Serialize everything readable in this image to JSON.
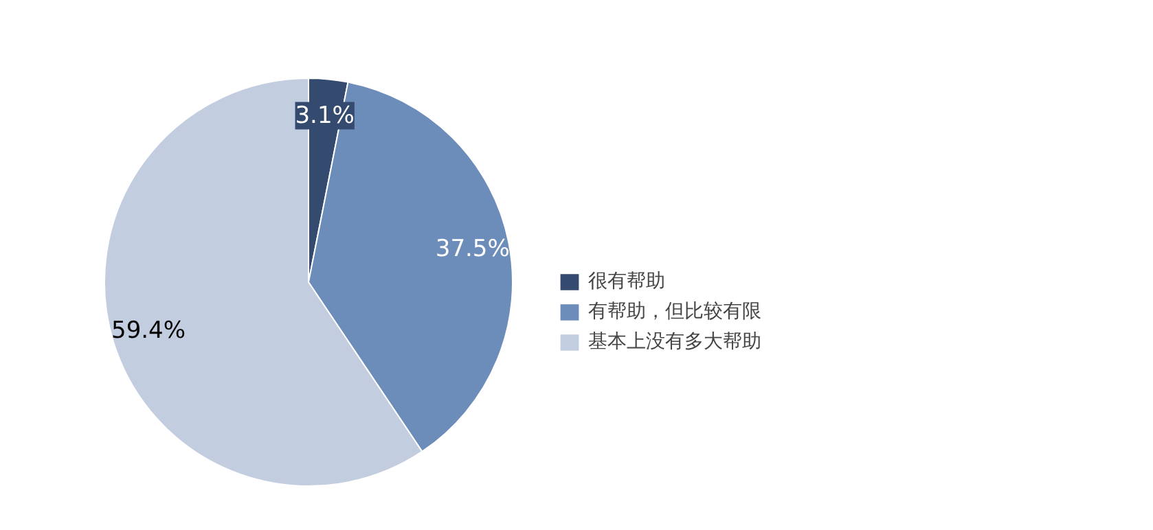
{
  "chart_data": {
    "type": "pie",
    "categories": [
      "很有帮助",
      "有帮助，但比较有限",
      "基本上没有多大帮助"
    ],
    "values": [
      3.1,
      37.5,
      59.4
    ],
    "colors": [
      "#344a6e",
      "#6c8cba",
      "#c3cde0"
    ],
    "value_labels": [
      "3.1%",
      "37.5%",
      "59.4%"
    ],
    "legend": "right"
  }
}
